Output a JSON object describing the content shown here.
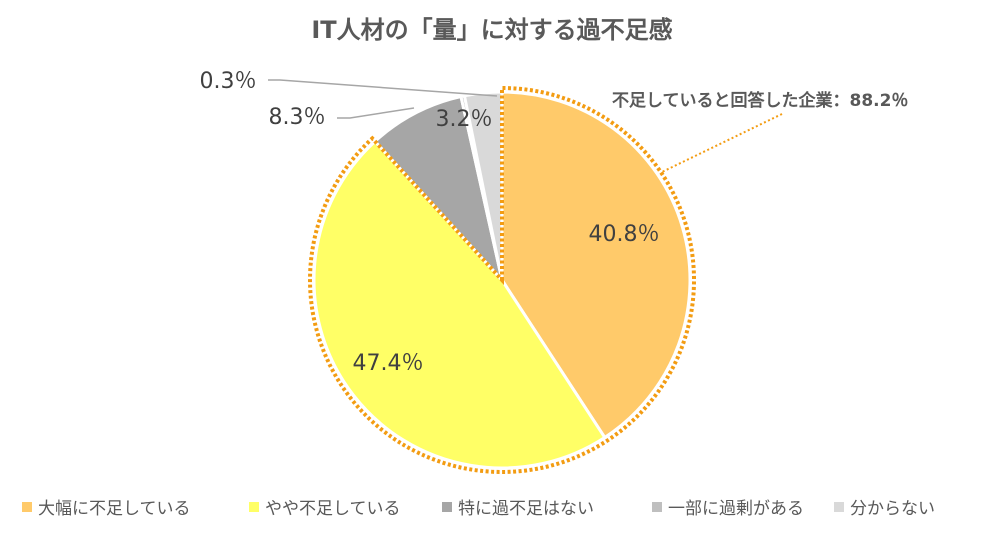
{
  "chart_data": {
    "type": "pie",
    "title": "IT人材の「量」に対する過不足感",
    "start_angle_deg": 0,
    "direction": "clockwise",
    "slices": [
      {
        "name": "大幅に不足している",
        "value": 40.8,
        "label": "40.8％",
        "color": "#FFCA6A",
        "inside": true
      },
      {
        "name": "やや不足している",
        "value": 47.4,
        "label": "47.4％",
        "color": "#FFFF66",
        "inside": true
      },
      {
        "name": "特に過不足はない",
        "value": 8.3,
        "label": "8.3％",
        "color": "#A6A6A6",
        "inside": false
      },
      {
        "name": "一部に過剰がある",
        "value": 0.3,
        "label": "0.3％",
        "color": "#BFBFBF",
        "inside": false
      },
      {
        "name": "分からない",
        "value": 3.2,
        "label": "3.2％",
        "color": "#D9D9D9",
        "inside": true
      }
    ],
    "callout": {
      "text": "不足していると回答した企業：88.2％",
      "value": 88.2,
      "line_color": "#F39C12"
    },
    "legend_position": "bottom"
  }
}
